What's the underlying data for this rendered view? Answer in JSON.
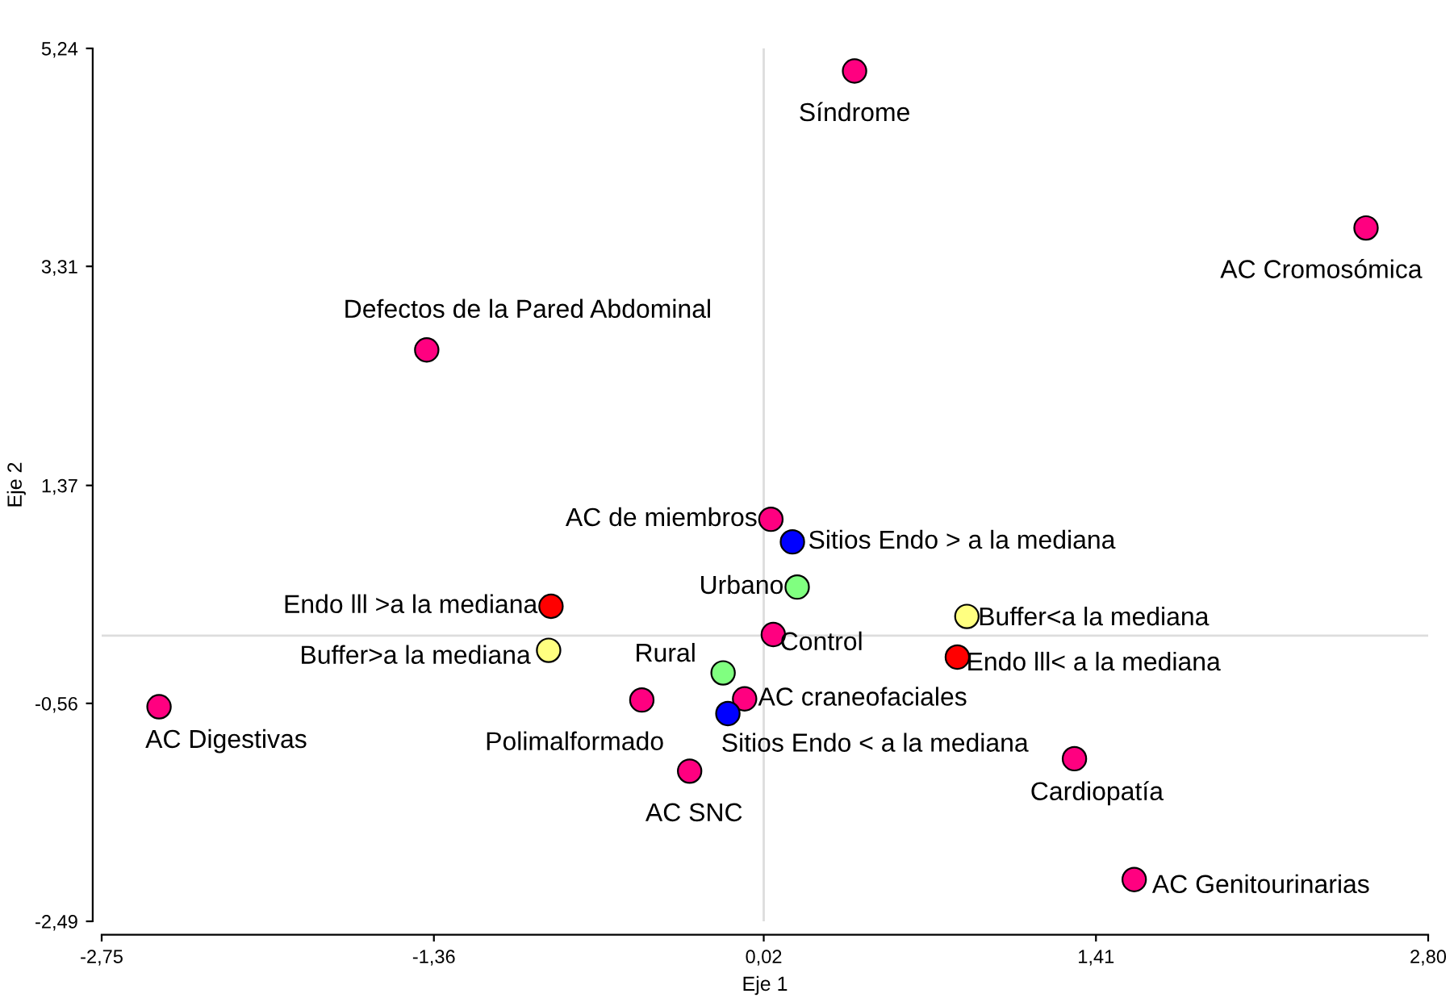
{
  "chart_data": {
    "type": "scatter",
    "xlabel": "Eje 1",
    "ylabel": "Eje 2",
    "xlim": [
      -2.75,
      2.8
    ],
    "ylim": [
      -2.49,
      5.24
    ],
    "xticks": [
      {
        "value": -2.75,
        "label": "-2,75"
      },
      {
        "value": -1.36,
        "label": "-1,36"
      },
      {
        "value": 0.02,
        "label": "0,02"
      },
      {
        "value": 1.41,
        "label": "1,41"
      },
      {
        "value": 2.8,
        "label": "2,80"
      }
    ],
    "yticks": [
      {
        "value": -2.49,
        "label": "-2,49"
      },
      {
        "value": -0.56,
        "label": "-0,56"
      },
      {
        "value": 1.37,
        "label": "1,37"
      },
      {
        "value": 3.31,
        "label": "3,31"
      },
      {
        "value": 5.24,
        "label": "5,24"
      }
    ],
    "ref_lines": [
      {
        "axis": "x",
        "value": 0.02,
        "color": "#dddddd"
      },
      {
        "axis": "y",
        "value": 0.04,
        "color": "#dddddd"
      }
    ],
    "marker": "circle",
    "grid": false,
    "legend": false,
    "series": [
      {
        "name": "Síndrome",
        "color": "#ff0080",
        "x": [
          0.4
        ],
        "values": [
          5.04
        ]
      },
      {
        "name": "AC Cromosómica",
        "color": "#ff0080",
        "x": [
          2.54
        ],
        "values": [
          3.65
        ]
      },
      {
        "name": "Defectos de la Pared Abdominal",
        "color": "#ff0080",
        "x": [
          -1.39
        ],
        "values": [
          2.57
        ]
      },
      {
        "name": "AC de miembros",
        "color": "#ff0080",
        "x": [
          0.05
        ],
        "values": [
          1.07
        ]
      },
      {
        "name": "Sitios Endo > a la mediana",
        "color": "#0000ff",
        "x": [
          0.14
        ],
        "values": [
          0.87
        ]
      },
      {
        "name": "Urbano",
        "color": "#80ff80",
        "x": [
          0.16
        ],
        "values": [
          0.47
        ]
      },
      {
        "name": "Endo lll >a la mediana",
        "color": "#ff0000",
        "x": [
          -0.87
        ],
        "values": [
          0.3
        ]
      },
      {
        "name": "Buffer>a la mediana",
        "color": "#ffff80",
        "x": [
          -0.88
        ],
        "values": [
          -0.09
        ]
      },
      {
        "name": "Control",
        "color": "#ff0080",
        "x": [
          0.06
        ],
        "values": [
          0.05
        ]
      },
      {
        "name": "Buffer<a la mediana",
        "color": "#ffff80",
        "x": [
          0.87
        ],
        "values": [
          0.21
        ]
      },
      {
        "name": "Endo lll< a la mediana",
        "color": "#ff0000",
        "x": [
          0.83
        ],
        "values": [
          -0.15
        ]
      },
      {
        "name": "Rural",
        "color": "#80ff80",
        "x": [
          -0.15
        ],
        "values": [
          -0.29
        ]
      },
      {
        "name": "AC craneofaciales",
        "color": "#ff0080",
        "x": [
          -0.06
        ],
        "values": [
          -0.52
        ]
      },
      {
        "name": "Sitios Endo < a la mediana",
        "color": "#0000ff",
        "x": [
          -0.13
        ],
        "values": [
          -0.65
        ]
      },
      {
        "name": "Polimalformado",
        "color": "#ff0080",
        "x": [
          -0.49
        ],
        "values": [
          -0.53
        ]
      },
      {
        "name": "AC SNC",
        "color": "#ff0080",
        "x": [
          -0.29
        ],
        "values": [
          -1.16
        ]
      },
      {
        "name": "AC Digestivas",
        "color": "#ff0080",
        "x": [
          -2.51
        ],
        "values": [
          -0.59
        ]
      },
      {
        "name": "Cardiopatía",
        "color": "#ff0080",
        "x": [
          1.32
        ],
        "values": [
          -1.05
        ]
      },
      {
        "name": "AC Genitourinarias",
        "color": "#ff0080",
        "x": [
          1.57
        ],
        "values": [
          -2.12
        ]
      }
    ]
  }
}
